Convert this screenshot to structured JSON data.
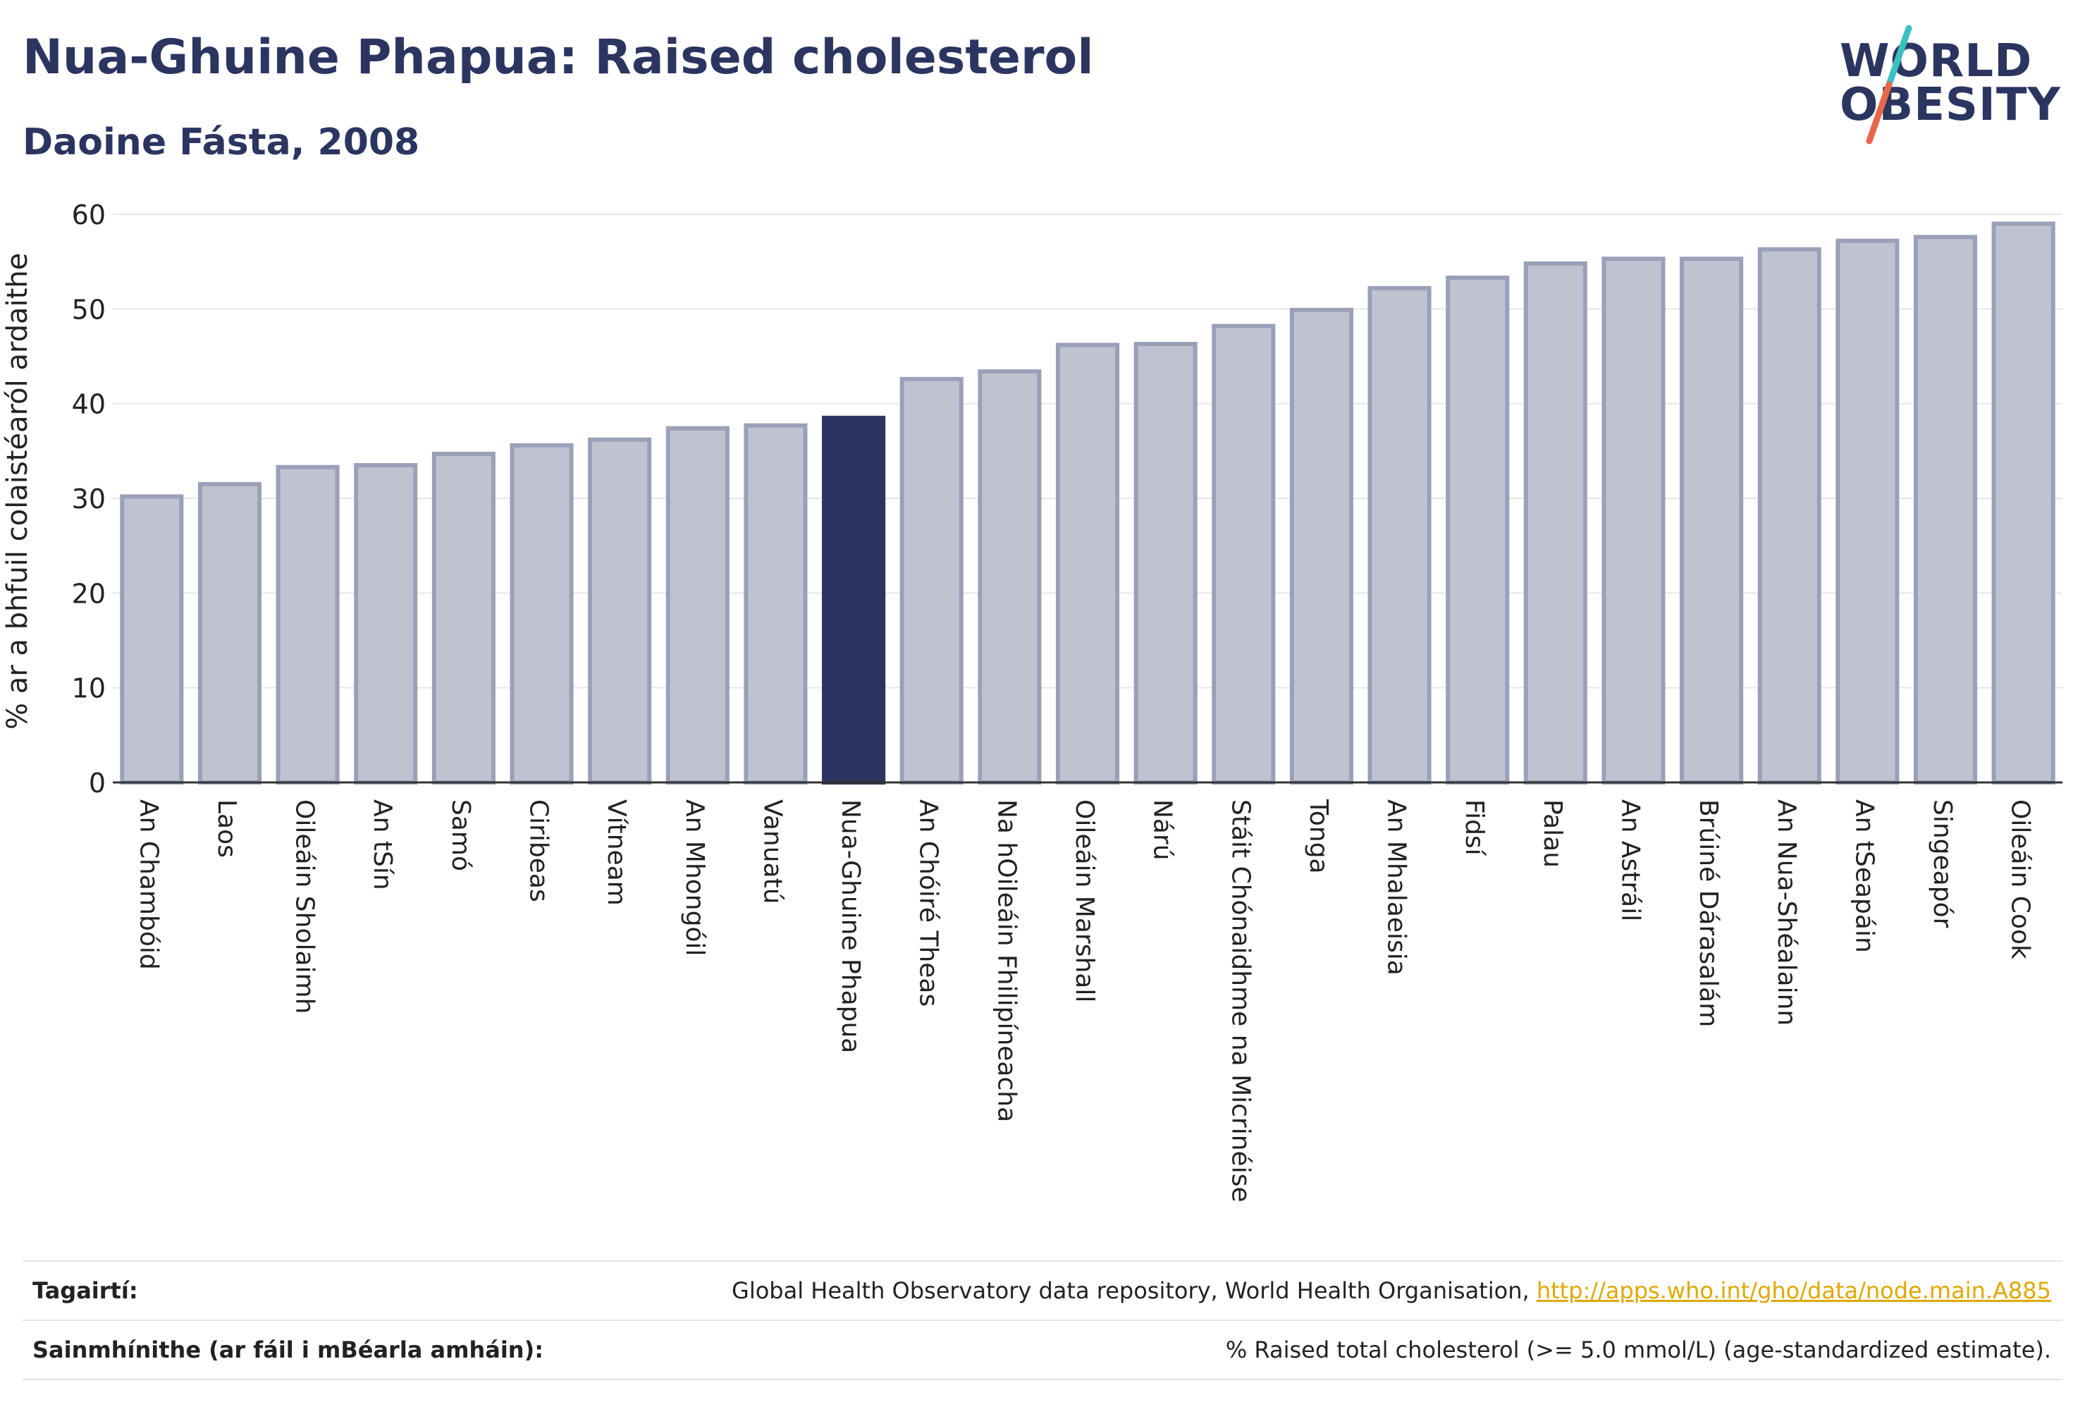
{
  "header": {
    "title": "Nua-Ghuine Phapua: Raised cholesterol",
    "subtitle": "Daoine Fásta, 2008"
  },
  "logo": {
    "line1": "WORLD",
    "line2": "OBESITY",
    "accent_colors": [
      "#3bbfbf",
      "#e8674c"
    ]
  },
  "colors": {
    "bar": "#bfc3d1",
    "bar_border": "#9aa0b8",
    "highlight": "#2b3560",
    "grid": "#e6e6e6",
    "link": "#e0a800"
  },
  "chart_data": {
    "type": "bar",
    "ylabel": "% ar a bhfuil colaistéaról ardaithe",
    "ylim": [
      0,
      60
    ],
    "yticks": [
      0,
      10,
      20,
      30,
      40,
      50,
      60
    ],
    "grid": true,
    "highlight": "Nua-Ghuine Phapua",
    "categories": [
      "An Chambóid",
      "Laos",
      "Oileáin Sholaimh",
      "An tSín",
      "Samó",
      "Ciribeas",
      "Vítneam",
      "An Mhongóil",
      "Vanuatú",
      "Nua-Ghuine Phapua",
      "An Chóiré Theas",
      "Na hOileáin Fhilipíneacha",
      "Oileáin Marshall",
      "Nárú",
      "Stáit Chónaidhme na Micrinéise",
      "Tonga",
      "An Mhalaeisia",
      "Fidsí",
      "Palau",
      "An Astráil",
      "Brúiné Dárasalám",
      "An Nua-Shéalainn",
      "An tSeapáin",
      "Singeapór",
      "Oileáin Cook"
    ],
    "values": [
      30.2,
      31.5,
      33.3,
      33.5,
      34.7,
      35.6,
      36.2,
      37.4,
      37.7,
      38.5,
      42.6,
      43.4,
      46.2,
      46.3,
      48.2,
      49.9,
      52.2,
      53.3,
      54.8,
      55.3,
      55.3,
      56.3,
      57.2,
      57.6,
      59.0
    ]
  },
  "references": [
    {
      "label": "Tagairtí:",
      "text": "Global Health Observatory data repository, World Health Organisation, ",
      "link": "http://apps.who.int/gho/data/node.main.A885"
    },
    {
      "label": "Sainmhínithe (ar fáil i mBéarla amháin):",
      "text": "% Raised total cholesterol (>= 5.0 mmol/L) (age-standardized estimate).",
      "link": ""
    }
  ]
}
